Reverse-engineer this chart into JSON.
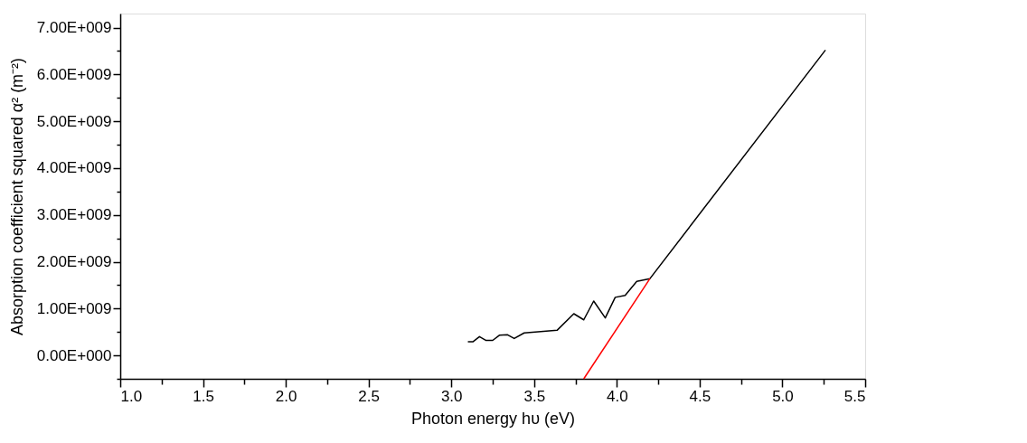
{
  "chart_data": {
    "type": "line",
    "xlabel": "Photon energy hυ (eV)",
    "ylabel": "Absorption coefficient squared α² (m⁻²)",
    "xlim": [
      1.0,
      5.5
    ],
    "ylim": [
      -500000000,
      7300000000
    ],
    "xticks": [
      {
        "value": 1.0,
        "label": "1.0"
      },
      {
        "value": 1.25,
        "label": null
      },
      {
        "value": 1.5,
        "label": "1.5"
      },
      {
        "value": 1.75,
        "label": null
      },
      {
        "value": 2.0,
        "label": "2.0"
      },
      {
        "value": 2.25,
        "label": null
      },
      {
        "value": 2.5,
        "label": "2.5"
      },
      {
        "value": 2.75,
        "label": null
      },
      {
        "value": 3.0,
        "label": "3.0"
      },
      {
        "value": 3.25,
        "label": null
      },
      {
        "value": 3.5,
        "label": "3.5"
      },
      {
        "value": 3.75,
        "label": null
      },
      {
        "value": 4.0,
        "label": "4.0"
      },
      {
        "value": 4.25,
        "label": null
      },
      {
        "value": 4.5,
        "label": "4.5"
      },
      {
        "value": 4.75,
        "label": null
      },
      {
        "value": 5.0,
        "label": "5.0"
      },
      {
        "value": 5.25,
        "label": null
      },
      {
        "value": 5.5,
        "label": "5.5"
      }
    ],
    "yticks": [
      {
        "value": -500000000,
        "label": null
      },
      {
        "value": 0,
        "label": "0.00E+000"
      },
      {
        "value": 500000000,
        "label": null
      },
      {
        "value": 1000000000,
        "label": "1.00E+009"
      },
      {
        "value": 1500000000,
        "label": null
      },
      {
        "value": 2000000000,
        "label": "2.00E+009"
      },
      {
        "value": 2500000000,
        "label": null
      },
      {
        "value": 3000000000,
        "label": "3.00E+009"
      },
      {
        "value": 3500000000,
        "label": null
      },
      {
        "value": 4000000000,
        "label": "4.00E+009"
      },
      {
        "value": 4500000000,
        "label": null
      },
      {
        "value": 5000000000,
        "label": "5.00E+009"
      },
      {
        "value": 5500000000,
        "label": null
      },
      {
        "value": 6000000000,
        "label": "6.00E+009"
      },
      {
        "value": 6500000000,
        "label": null
      },
      {
        "value": 7000000000,
        "label": "7.00E+009"
      }
    ],
    "grid": false,
    "marker": "none",
    "line_style": "solid",
    "series": [
      {
        "color": "#000000",
        "x": [
          3.1,
          3.13,
          3.17,
          3.21,
          3.25,
          3.29,
          3.34,
          3.38,
          3.44,
          3.64,
          3.74,
          3.8,
          3.86,
          3.93,
          3.99,
          4.05,
          4.12,
          4.2,
          5.26
        ],
        "values": [
          290000000,
          290000000,
          400000000,
          320000000,
          320000000,
          430000000,
          440000000,
          360000000,
          480000000,
          540000000,
          890000000,
          760000000,
          1160000000,
          800000000,
          1240000000,
          1280000000,
          1580000000,
          1640000000,
          6520000000
        ]
      },
      {
        "color": "#ff0000",
        "x": [
          3.8,
          4.2
        ],
        "values": [
          -500000000,
          1640000000
        ]
      }
    ]
  }
}
